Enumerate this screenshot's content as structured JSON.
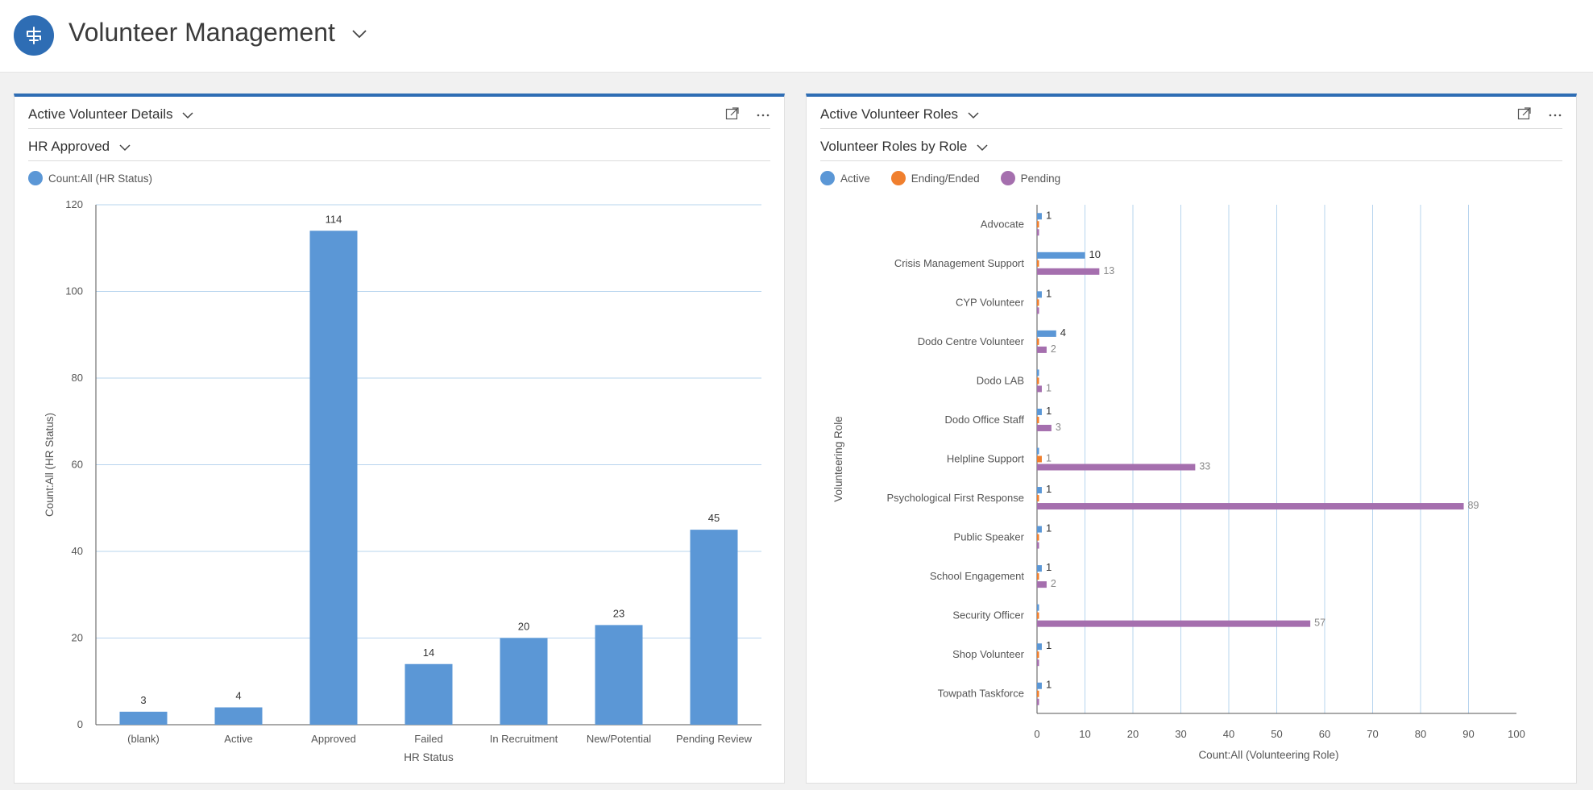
{
  "app": {
    "title": "Volunteer Management",
    "logo_icon": "hierarchy-icon"
  },
  "colors": {
    "brand": "#2e6db4",
    "active": "#5b97d6",
    "ending": "#f07f2e",
    "pending": "#a56fae",
    "grid": "#b7d4ee"
  },
  "left_panel": {
    "title": "Active Volunteer Details",
    "view": "HR Approved",
    "legend": [
      {
        "label": "Count:All (HR Status)",
        "color": "#5b97d6"
      }
    ]
  },
  "right_panel": {
    "title": "Active Volunteer Roles",
    "view": "Volunteer Roles by Role",
    "legend": [
      {
        "label": "Active",
        "color": "#5b97d6"
      },
      {
        "label": "Ending/Ended",
        "color": "#f07f2e"
      },
      {
        "label": "Pending",
        "color": "#a56fae"
      }
    ]
  },
  "chart_data": [
    {
      "type": "bar",
      "categories": [
        "(blank)",
        "Active",
        "Approved",
        "Failed",
        "In Recruitment",
        "New/Potential",
        "Pending Review"
      ],
      "values": [
        3,
        4,
        114,
        14,
        20,
        23,
        45
      ],
      "xlabel": "HR Status",
      "ylabel": "Count:All (HR Status)",
      "ylim": [
        0,
        120
      ],
      "yticks": [
        0,
        20,
        40,
        60,
        80,
        100,
        120
      ],
      "grid": true,
      "legend": "top-left"
    },
    {
      "type": "bar",
      "orientation": "horizontal",
      "categories": [
        "Advocate",
        "Crisis Management Support",
        "CYP Volunteer",
        "Dodo Centre Volunteer",
        "Dodo LAB",
        "Dodo Office Staff",
        "Helpline Support",
        "Psychological First Response",
        "Public Speaker",
        "School Engagement",
        "Security Officer",
        "Shop Volunteer",
        "Towpath Taskforce"
      ],
      "series": [
        {
          "name": "Active",
          "values": [
            1,
            10,
            1,
            4,
            0,
            1,
            0,
            1,
            1,
            1,
            0,
            1,
            1
          ]
        },
        {
          "name": "Ending/Ended",
          "values": [
            0,
            0,
            0,
            0,
            0,
            0,
            1,
            0,
            0,
            0,
            0,
            0,
            0
          ]
        },
        {
          "name": "Pending",
          "values": [
            0,
            13,
            0,
            2,
            1,
            3,
            33,
            89,
            0,
            2,
            57,
            0,
            0
          ]
        }
      ],
      "xlabel": "Count:All (Volunteering Role)",
      "ylabel": "Volunteering Role",
      "xlim": [
        0,
        100
      ],
      "xticks": [
        0,
        10,
        20,
        30,
        40,
        50,
        60,
        70,
        80,
        90,
        100
      ],
      "grid": true,
      "legend": "top-left"
    }
  ]
}
